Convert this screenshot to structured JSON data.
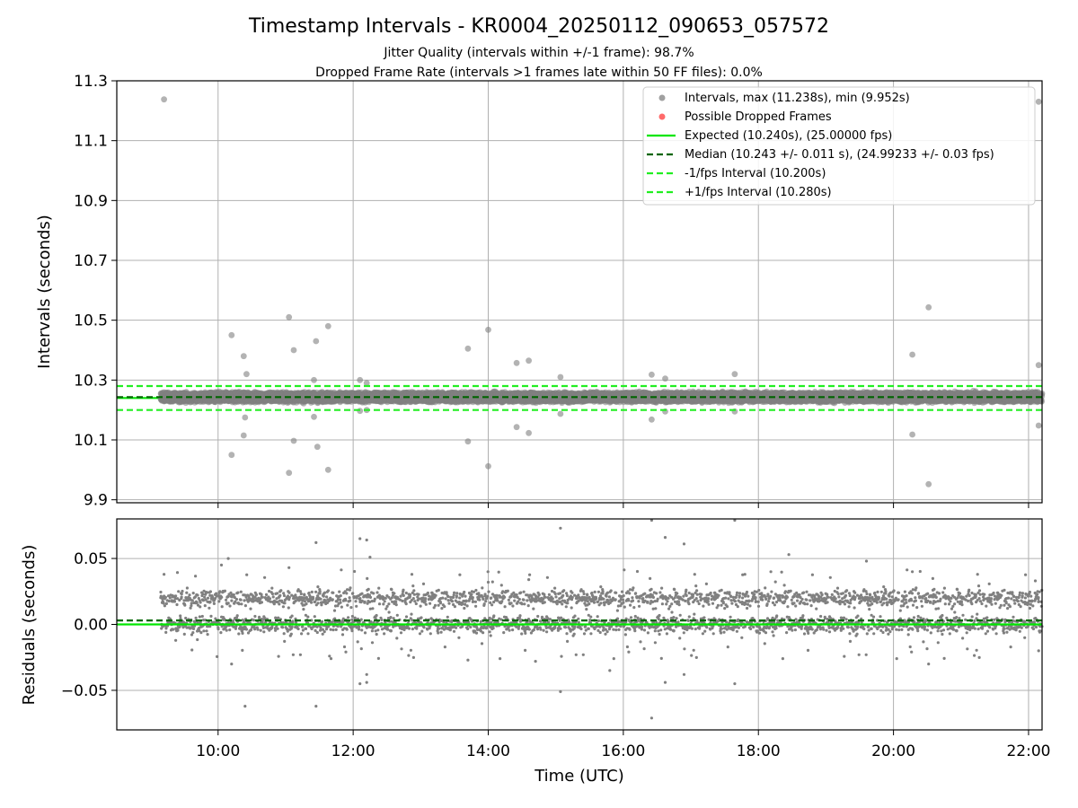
{
  "figure": {
    "title": "Timestamp Intervals - KR0004_20250112_090653_057572",
    "subtitle_lines": [
      "Jitter Quality (intervals within +/-1 frame): 98.7%",
      "Dropped Frame Rate (intervals >1 frames late within 50 FF files): 0.0%"
    ],
    "jitter_quality_pct": 98.7,
    "dropped_frame_rate_pct": 0.0
  },
  "colors": {
    "points": "#808080",
    "dropped": "#ff5c5c",
    "expected": "#00e600",
    "median": "#006400",
    "interval": "#22ee22",
    "grid": "#b0b0b0"
  },
  "chart_data": [
    {
      "type": "scatter",
      "name": "top-intervals",
      "ylabel": "Intervals (seconds)",
      "xlabel": "",
      "xlim_hours": [
        8.5,
        22.2
      ],
      "ylim": [
        9.89,
        11.3
      ],
      "yticks": [
        9.9,
        10.1,
        10.3,
        10.5,
        10.7,
        10.9,
        11.1,
        11.3
      ],
      "ytick_labels": [
        "9.9",
        "10.1",
        "10.3",
        "10.5",
        "10.7",
        "10.9",
        "11.1",
        "11.3"
      ],
      "xticks_hours": [
        10,
        12,
        14,
        16,
        18,
        20,
        22
      ],
      "grid": true,
      "legend_position": "top-right",
      "legend": [
        {
          "label": "Intervals, max (11.238s), min (9.952s)",
          "kind": "point",
          "color_key": "points"
        },
        {
          "label": "Possible Dropped Frames",
          "kind": "point",
          "color_key": "dropped"
        },
        {
          "label": "Expected (10.240s), (25.00000 fps)",
          "kind": "line",
          "color_key": "expected"
        },
        {
          "label": "Median (10.243 +/- 0.011 s), (24.99233 +/- 0.03 fps)",
          "kind": "dashed",
          "color_key": "median"
        },
        {
          "label": "-1/fps Interval (10.200s)",
          "kind": "dashed",
          "color_key": "interval"
        },
        {
          "label": "+1/fps Interval (10.280s)",
          "kind": "dashed",
          "color_key": "interval"
        }
      ],
      "reference_lines": {
        "expected": 10.24,
        "median": 10.243,
        "minus_interval": 10.2,
        "plus_interval": 10.28
      },
      "bulk": {
        "x_start": 9.15,
        "x_end": 22.2,
        "count": 4600,
        "center": 10.243,
        "spread": 0.02
      },
      "outliers": [
        [
          9.2,
          11.238
        ],
        [
          10.2,
          10.45
        ],
        [
          10.2,
          10.05
        ],
        [
          10.38,
          10.38
        ],
        [
          10.42,
          10.32
        ],
        [
          10.4,
          10.175
        ],
        [
          10.38,
          10.115
        ],
        [
          11.05,
          10.51
        ],
        [
          11.12,
          10.4
        ],
        [
          11.12,
          10.097
        ],
        [
          11.05,
          9.99
        ],
        [
          11.45,
          10.43
        ],
        [
          11.63,
          10.48
        ],
        [
          11.42,
          10.3
        ],
        [
          11.42,
          10.177
        ],
        [
          11.47,
          10.077
        ],
        [
          11.63,
          10.0
        ],
        [
          12.1,
          10.3
        ],
        [
          12.2,
          10.29
        ],
        [
          12.1,
          10.197
        ],
        [
          12.2,
          10.2
        ],
        [
          13.7,
          10.405
        ],
        [
          14.0,
          10.468
        ],
        [
          13.7,
          10.095
        ],
        [
          14.0,
          10.012
        ],
        [
          14.42,
          10.357
        ],
        [
          14.6,
          10.365
        ],
        [
          14.42,
          10.143
        ],
        [
          14.6,
          10.123
        ],
        [
          15.07,
          10.31
        ],
        [
          15.07,
          10.187
        ],
        [
          16.42,
          10.318
        ],
        [
          16.62,
          10.305
        ],
        [
          16.42,
          10.168
        ],
        [
          16.62,
          10.195
        ],
        [
          17.65,
          10.32
        ],
        [
          17.65,
          10.195
        ],
        [
          20.28,
          10.385
        ],
        [
          20.28,
          10.118
        ],
        [
          20.52,
          10.543
        ],
        [
          20.52,
          9.952
        ],
        [
          22.15,
          11.23
        ],
        [
          22.15,
          10.35
        ],
        [
          22.15,
          10.148
        ]
      ]
    },
    {
      "type": "scatter",
      "name": "bottom-residuals",
      "ylabel": "Residuals (seconds)",
      "xlabel": "Time (UTC)",
      "xlim_hours": [
        8.5,
        22.2
      ],
      "ylim": [
        -0.08,
        0.08
      ],
      "yticks": [
        -0.05,
        0.0,
        0.05
      ],
      "ytick_labels": [
        "−0.05",
        "0.00",
        "0.05"
      ],
      "xticks_hours": [
        10,
        12,
        14,
        16,
        18,
        20,
        22
      ],
      "xtick_labels": [
        "10:00",
        "12:00",
        "14:00",
        "16:00",
        "18:00",
        "20:00",
        "22:00"
      ],
      "grid": true,
      "reference_lines": {
        "expected": 0.0,
        "median": 0.003
      },
      "bulk": {
        "x_start": 9.15,
        "x_end": 22.2,
        "count": 3600,
        "bands": [
          0.0,
          0.02
        ],
        "spread": 0.0045
      },
      "outliers": [
        [
          9.2,
          0.038
        ],
        [
          10.05,
          0.045
        ],
        [
          10.15,
          0.05
        ],
        [
          10.2,
          -0.03
        ],
        [
          10.4,
          -0.062
        ],
        [
          11.05,
          0.043
        ],
        [
          11.45,
          0.062
        ],
        [
          11.45,
          -0.062
        ],
        [
          11.65,
          -0.024
        ],
        [
          12.1,
          0.065
        ],
        [
          12.2,
          0.064
        ],
        [
          12.25,
          0.051
        ],
        [
          12.1,
          -0.045
        ],
        [
          12.2,
          -0.044
        ],
        [
          12.2,
          -0.038
        ],
        [
          13.7,
          -0.027
        ],
        [
          14.0,
          0.032
        ],
        [
          14.6,
          0.034
        ],
        [
          14.7,
          -0.028
        ],
        [
          15.07,
          0.073
        ],
        [
          15.07,
          -0.051
        ],
        [
          15.8,
          -0.035
        ],
        [
          16.42,
          0.079
        ],
        [
          16.42,
          -0.071
        ],
        [
          16.62,
          0.066
        ],
        [
          16.62,
          -0.044
        ],
        [
          16.9,
          0.061
        ],
        [
          16.9,
          -0.038
        ],
        [
          17.65,
          0.079
        ],
        [
          17.65,
          -0.045
        ],
        [
          17.8,
          0.038
        ],
        [
          18.45,
          0.053
        ],
        [
          19.6,
          0.048
        ],
        [
          20.28,
          0.04
        ],
        [
          20.52,
          -0.03
        ],
        [
          22.1,
          0.033
        ],
        [
          22.15,
          -0.02
        ]
      ]
    }
  ]
}
